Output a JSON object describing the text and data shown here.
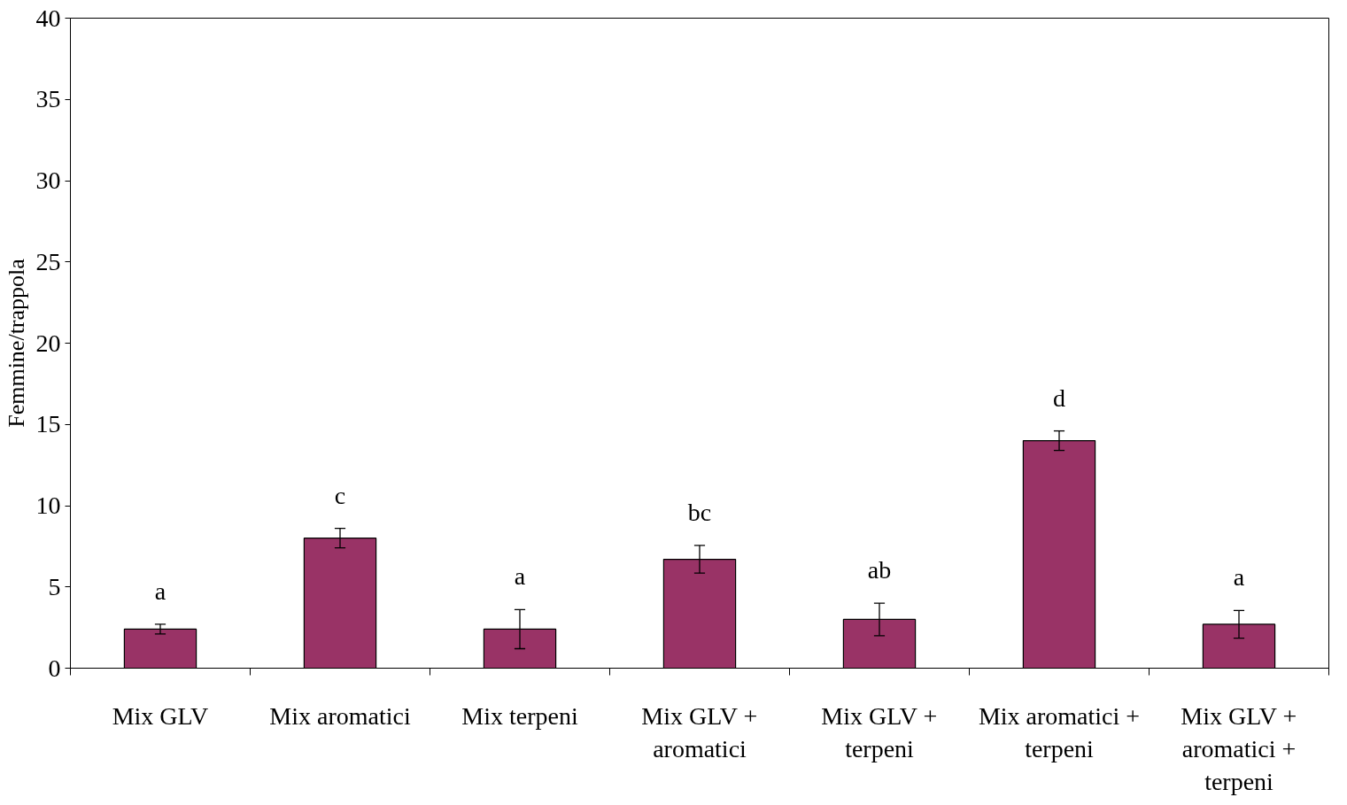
{
  "chart_data": {
    "type": "bar",
    "ylabel": "Femmine/trappola",
    "categories": [
      "Mix GLV",
      "Mix aromatici",
      "Mix terpeni",
      "Mix GLV + aromatici",
      "Mix GLV + terpeni",
      "Mix aromatici + terpeni",
      "Mix GLV + aromatici + terpeni"
    ],
    "values": [
      2.4,
      8.0,
      2.4,
      6.7,
      3.0,
      14.0,
      2.7
    ],
    "errors": [
      0.3,
      0.6,
      1.2,
      0.85,
      1.0,
      0.6,
      0.85
    ],
    "color": "#993366",
    "ylim": [
      0,
      40
    ],
    "yticks": [
      0,
      5,
      10,
      15,
      20,
      25,
      30,
      35,
      40
    ],
    "grid": false,
    "annotations": [
      "a",
      "c",
      "a",
      "bc",
      "ab",
      "d",
      "a"
    ]
  }
}
